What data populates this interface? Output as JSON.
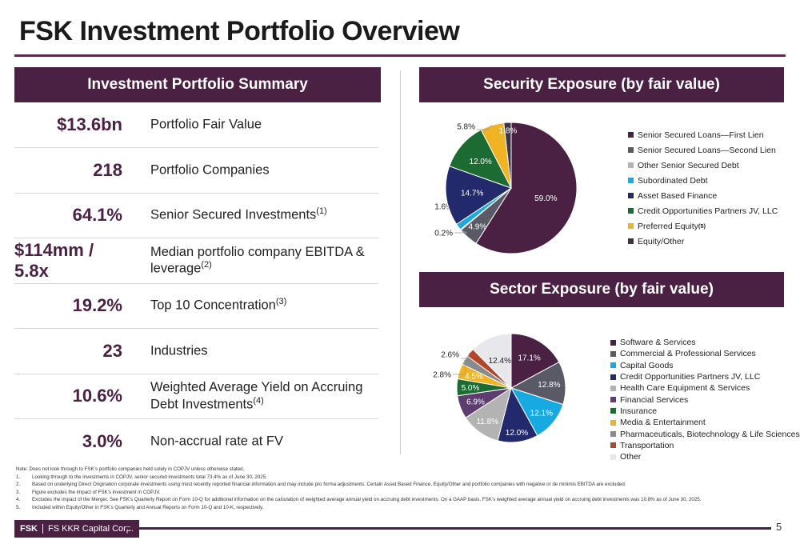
{
  "title": "FSK Investment Portfolio Overview",
  "summary": {
    "heading": "Investment Portfolio Summary",
    "rows": [
      {
        "value": "$13.6bn",
        "label": "Portfolio Fair Value",
        "sup": ""
      },
      {
        "value": "218",
        "label": "Portfolio Companies",
        "sup": ""
      },
      {
        "value": "64.1%",
        "label": "Senior Secured Investments",
        "sup": "(1)"
      },
      {
        "value": "$114mm / 5.8x",
        "label": "Median portfolio company EBITDA & leverage",
        "sup": "(2)"
      },
      {
        "value": "19.2%",
        "label": "Top 10 Concentration",
        "sup": "(3)"
      },
      {
        "value": "23",
        "label": "Industries",
        "sup": ""
      },
      {
        "value": "10.6%",
        "label": "Weighted Average Yield on Accruing Debt Investments",
        "sup": "(4)"
      },
      {
        "value": "3.0%",
        "label": "Non-accrual rate at FV",
        "sup": ""
      }
    ]
  },
  "security": {
    "heading": "Security Exposure (by fair value)"
  },
  "sector": {
    "heading": "Sector Exposure (by fair value)"
  },
  "chart_data": [
    {
      "type": "pie",
      "title": "Security Exposure (by fair value)",
      "categories": [
        "Senior Secured Loans—First Lien",
        "Senior Secured Loans—Second Lien",
        "Other Senior Secured Debt",
        "Subordinated Debt",
        "Asset Based Finance",
        "Credit Opportunities Partners JV, LLC",
        "Preferred Equity",
        "Equity/Other"
      ],
      "legend_sups": [
        "",
        "",
        "",
        "",
        "",
        "",
        "(5)",
        ""
      ],
      "values": [
        59.0,
        4.9,
        0.2,
        1.6,
        14.7,
        12.0,
        5.8,
        1.8
      ],
      "labels": [
        "59.0%",
        "4.9%",
        "0.2%",
        "1.6%",
        "14.7%",
        "12.0%",
        "5.8%",
        "1.8%"
      ],
      "colors": [
        "#4a2143",
        "#5a5a66",
        "#b3b3b3",
        "#17a9e1",
        "#232a6b",
        "#1c6b33",
        "#f0b323",
        "#3d3547"
      ],
      "legend_placement": "right"
    },
    {
      "type": "pie",
      "title": "Sector Exposure (by fair value)",
      "categories": [
        "Software & Services",
        "Commercial & Professional Services",
        "Capital Goods",
        "Credit Opportunities Partners JV, LLC",
        "Health Care Equipment & Services",
        "Financial Services",
        "Insurance",
        "Media & Entertainment",
        "Pharmaceuticals, Biotechnology & Life Sciences",
        "Transportation",
        "Other"
      ],
      "values": [
        17.1,
        12.8,
        12.1,
        12.0,
        11.8,
        6.9,
        5.0,
        4.5,
        2.8,
        2.6,
        12.4
      ],
      "labels": [
        "17.1%",
        "12.8%",
        "12.1%",
        "12.0%",
        "11.8%",
        "6.9%",
        "5.0%",
        "4.5%",
        "2.8%",
        "2.6%",
        "12.4%"
      ],
      "colors": [
        "#4a2143",
        "#5a5a66",
        "#17a9e1",
        "#232a6b",
        "#b3b3b3",
        "#5c3d6e",
        "#1c6b33",
        "#f0b323",
        "#8a8a8a",
        "#b5442a",
        "#e8e8ec"
      ],
      "legend_placement": "right"
    }
  ],
  "notes": {
    "intro": "Note: Does not look through to FSK’s portfolio companies held solely in COPJV unless otherwise stated.",
    "items": [
      {
        "num": "1.",
        "text": "Looking through to the investments in COPJV, senior secured investments total 73.4% as of June 30, 2025."
      },
      {
        "num": "2.",
        "text": "Based on underlying Direct Origination corporate investments using most recently reported financial information and may include pro forma adjustments. Certain Asset Based Finance, Equity/Other and portfolio companies with negative or de minimis EBITDA are excluded."
      },
      {
        "num": "3.",
        "text": "Figure excludes the impact of FSK’s investment in COPJV."
      },
      {
        "num": "4.",
        "text": "Excludes the impact of the Merger. See FSK’s Quarterly Report on Form 10-Q for additional information on the calculation of weighted average annual yield on accruing debt investments. On a GAAP basis, FSK’s weighted average annual yield on accruing debt investments was 10.8% as of June 30, 2025."
      },
      {
        "num": "5.",
        "text": "Included within Equity/Other in FSK’s Quarterly and Annual Reports on Form 10-Q and 10-K, respectively."
      }
    ]
  },
  "footer": {
    "ticker": "FSK",
    "company": "FS KKR Capital Corp.",
    "page": "5"
  }
}
